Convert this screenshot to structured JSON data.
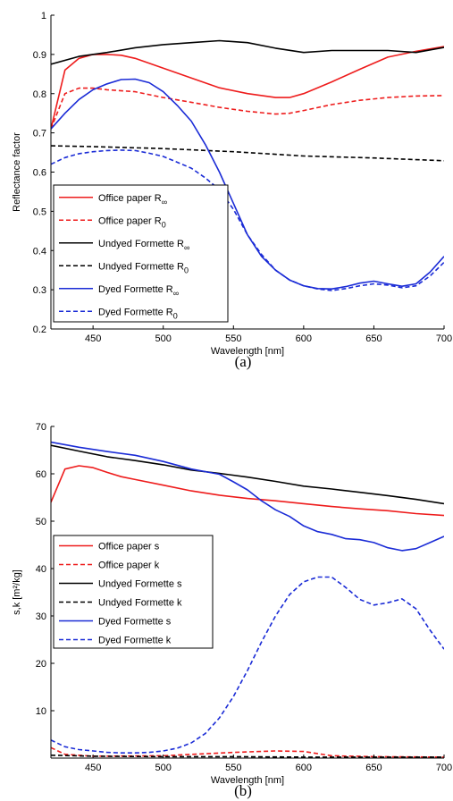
{
  "chart_data": [
    {
      "type": "line",
      "caption": "(a)",
      "xlabel": "Wavelength [nm]",
      "ylabel": "Reflectance factor",
      "xlim": [
        420,
        700
      ],
      "ylim": [
        0.2,
        1.0
      ],
      "xticks": [
        450,
        500,
        550,
        600,
        650,
        700
      ],
      "yticks": [
        0.2,
        0.3,
        0.4,
        0.5,
        0.6,
        0.7,
        0.8,
        0.9,
        1.0
      ],
      "ytick_labels": [
        "0.2",
        "0.3",
        "0.4",
        "0.5",
        "0.6",
        "0.7",
        "0.8",
        "0.9",
        "1"
      ],
      "legend_position": "bottom-left",
      "series": [
        {
          "name": "Office paper R",
          "sub": "∞",
          "color": "#ee1c1c",
          "dash": false,
          "x": [
            420,
            430,
            440,
            450,
            460,
            470,
            480,
            500,
            520,
            540,
            560,
            580,
            590,
            600,
            620,
            640,
            660,
            680,
            700
          ],
          "y": [
            0.71,
            0.86,
            0.89,
            0.9,
            0.9,
            0.898,
            0.89,
            0.865,
            0.84,
            0.815,
            0.8,
            0.79,
            0.79,
            0.8,
            0.83,
            0.862,
            0.893,
            0.908,
            0.92
          ]
        },
        {
          "name": "Office paper R",
          "sub": "0",
          "color": "#ee1c1c",
          "dash": true,
          "x": [
            420,
            430,
            440,
            450,
            460,
            480,
            500,
            520,
            540,
            560,
            580,
            590,
            600,
            620,
            640,
            660,
            680,
            700
          ],
          "y": [
            0.71,
            0.8,
            0.814,
            0.814,
            0.81,
            0.805,
            0.79,
            0.778,
            0.765,
            0.755,
            0.748,
            0.75,
            0.757,
            0.772,
            0.783,
            0.79,
            0.794,
            0.795
          ]
        },
        {
          "name": "Undyed Formette R",
          "sub": "∞",
          "color": "#000000",
          "dash": false,
          "x": [
            420,
            440,
            460,
            480,
            500,
            520,
            540,
            560,
            580,
            600,
            620,
            640,
            660,
            680,
            700
          ],
          "y": [
            0.875,
            0.895,
            0.905,
            0.917,
            0.925,
            0.93,
            0.935,
            0.93,
            0.916,
            0.905,
            0.91,
            0.91,
            0.91,
            0.905,
            0.918
          ]
        },
        {
          "name": "Undyed Formette R",
          "sub": "0",
          "color": "#000000",
          "dash": true,
          "x": [
            420,
            450,
            500,
            550,
            600,
            650,
            700
          ],
          "y": [
            0.667,
            0.665,
            0.66,
            0.652,
            0.641,
            0.636,
            0.629
          ]
        },
        {
          "name": "Dyed Formette R",
          "sub": "∞",
          "color": "#1a2bd6",
          "dash": false,
          "x": [
            420,
            430,
            440,
            450,
            460,
            470,
            480,
            490,
            500,
            510,
            520,
            530,
            540,
            550,
            560,
            570,
            580,
            590,
            600,
            610,
            620,
            630,
            640,
            650,
            660,
            670,
            680,
            690,
            700
          ],
          "y": [
            0.71,
            0.75,
            0.785,
            0.81,
            0.825,
            0.836,
            0.837,
            0.828,
            0.805,
            0.77,
            0.73,
            0.67,
            0.6,
            0.52,
            0.44,
            0.385,
            0.35,
            0.325,
            0.31,
            0.303,
            0.302,
            0.308,
            0.317,
            0.322,
            0.315,
            0.309,
            0.315,
            0.345,
            0.385
          ]
        },
        {
          "name": "Dyed Formette R",
          "sub": "0",
          "color": "#1a2bd6",
          "dash": true,
          "x": [
            420,
            430,
            440,
            450,
            460,
            470,
            480,
            490,
            500,
            510,
            520,
            530,
            540,
            550,
            560,
            570,
            580,
            590,
            600,
            610,
            620,
            630,
            640,
            650,
            660,
            670,
            680,
            690,
            700
          ],
          "y": [
            0.62,
            0.637,
            0.647,
            0.652,
            0.655,
            0.656,
            0.655,
            0.648,
            0.64,
            0.625,
            0.61,
            0.585,
            0.555,
            0.505,
            0.44,
            0.39,
            0.35,
            0.325,
            0.31,
            0.302,
            0.298,
            0.303,
            0.31,
            0.315,
            0.312,
            0.305,
            0.31,
            0.335,
            0.37
          ]
        }
      ]
    },
    {
      "type": "line",
      "caption": "(b)",
      "xlabel": "Wavelength [nm]",
      "ylabel": "s,k [m²/kg]",
      "xlim": [
        420,
        700
      ],
      "ylim": [
        0,
        70
      ],
      "xticks": [
        450,
        500,
        550,
        600,
        650,
        700
      ],
      "yticks": [
        10,
        20,
        30,
        40,
        50,
        60,
        70
      ],
      "ytick_labels": [
        "10",
        "20",
        "30",
        "40",
        "50",
        "60",
        "70"
      ],
      "legend_position": "middle-left",
      "series": [
        {
          "name": "Office paper s",
          "color": "#ee1c1c",
          "dash": false,
          "x": [
            420,
            430,
            440,
            450,
            460,
            470,
            480,
            500,
            520,
            540,
            560,
            580,
            600,
            620,
            640,
            660,
            680,
            700
          ],
          "y": [
            54,
            61,
            61.7,
            61.3,
            60.3,
            59.4,
            58.8,
            57.6,
            56.4,
            55.5,
            54.8,
            54.3,
            53.7,
            53.1,
            52.6,
            52.2,
            51.6,
            51.2
          ]
        },
        {
          "name": "Office paper k",
          "color": "#ee1c1c",
          "dash": true,
          "x": [
            420,
            430,
            450,
            500,
            550,
            580,
            600,
            620,
            650,
            700
          ],
          "y": [
            2.2,
            0.8,
            0.4,
            0.5,
            1.2,
            1.5,
            1.4,
            0.5,
            0.3,
            0.2
          ]
        },
        {
          "name": "Undyed Formette s",
          "color": "#000000",
          "dash": false,
          "x": [
            420,
            440,
            460,
            480,
            500,
            520,
            540,
            560,
            580,
            600,
            620,
            640,
            660,
            680,
            700
          ],
          "y": [
            66,
            64.8,
            63.6,
            62.8,
            61.9,
            60.8,
            60.1,
            59.3,
            58.4,
            57.4,
            56.8,
            56.1,
            55.4,
            54.6,
            53.7
          ]
        },
        {
          "name": "Undyed Formette k",
          "color": "#000000",
          "dash": true,
          "x": [
            420,
            450,
            500,
            550,
            600,
            650,
            700
          ],
          "y": [
            0.6,
            0.4,
            0.3,
            0.3,
            0.2,
            0.2,
            0.2
          ]
        },
        {
          "name": "Dyed Formette s",
          "color": "#1a2bd6",
          "dash": false,
          "x": [
            420,
            440,
            460,
            480,
            500,
            520,
            540,
            550,
            560,
            570,
            580,
            590,
            600,
            610,
            620,
            630,
            640,
            650,
            660,
            670,
            680,
            690,
            700
          ],
          "y": [
            66.7,
            65.6,
            64.7,
            63.9,
            62.6,
            61,
            59.9,
            58.3,
            56.6,
            54.3,
            52.4,
            51,
            49,
            47.8,
            47.2,
            46.3,
            46.1,
            45.5,
            44.4,
            43.8,
            44.2,
            45.5,
            46.8
          ]
        },
        {
          "name": "Dyed Formette k",
          "color": "#1a2bd6",
          "dash": true,
          "x": [
            420,
            430,
            440,
            450,
            460,
            470,
            480,
            490,
            500,
            510,
            520,
            530,
            540,
            550,
            560,
            570,
            580,
            590,
            600,
            610,
            620,
            630,
            640,
            650,
            660,
            670,
            680,
            690,
            700
          ],
          "y": [
            3.8,
            2.4,
            1.8,
            1.5,
            1.2,
            1.1,
            1.1,
            1.2,
            1.5,
            2.1,
            3.2,
            5.2,
            8.5,
            13,
            18.5,
            24.5,
            30,
            34.5,
            37.2,
            38.2,
            38.2,
            36,
            33.5,
            32.3,
            32.8,
            33.6,
            31.5,
            27,
            23
          ]
        }
      ]
    }
  ]
}
